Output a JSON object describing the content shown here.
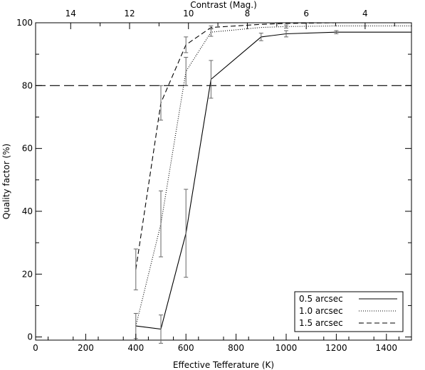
{
  "chart_data": {
    "type": "line",
    "title": "",
    "xlabel": "Effective Tefferature (K)",
    "ylabel": "Quality factor (%)",
    "top_axis_label": "Contrast (Mag.)",
    "xlim": [
      0,
      1500
    ],
    "ylim": [
      -1,
      100
    ],
    "x_ticks": [
      0,
      200,
      400,
      600,
      800,
      1000,
      1200,
      1400
    ],
    "y_ticks": [
      0,
      20,
      40,
      60,
      80,
      100
    ],
    "top_ticks": [
      {
        "label": "14",
        "x": 140
      },
      {
        "label": "12",
        "x": 375
      },
      {
        "label": "10",
        "x": 610
      },
      {
        "label": "8",
        "x": 845
      },
      {
        "label": "6",
        "x": 1080
      },
      {
        "label": "4",
        "x": 1315
      }
    ],
    "reference_line": {
      "y": 80,
      "style": "long-dash"
    },
    "grid": false,
    "legend_position": "bottom-right",
    "series": [
      {
        "name": "0.5 arcsec",
        "style": "solid",
        "points": [
          {
            "x": 400,
            "y": 3.5,
            "err": null
          },
          {
            "x": 500,
            "y": 2.5,
            "err": 4.5
          },
          {
            "x": 600,
            "y": 33,
            "err": 14
          },
          {
            "x": 700,
            "y": 82,
            "err": 6
          },
          {
            "x": 900,
            "y": 95.5,
            "err": 1.2
          },
          {
            "x": 1000,
            "y": 96.5,
            "err": 1
          },
          {
            "x": 1200,
            "y": 97,
            "err": 0.5
          },
          {
            "x": 1500,
            "y": 97,
            "err": null
          }
        ]
      },
      {
        "name": "1.0 arcsec",
        "style": "dotted",
        "points": [
          {
            "x": 400,
            "y": 3.5,
            "err": 4
          },
          {
            "x": 500,
            "y": 36,
            "err": 10.5
          },
          {
            "x": 600,
            "y": 84.5,
            "err": 4.5
          },
          {
            "x": 700,
            "y": 97,
            "err": 1.3
          },
          {
            "x": 900,
            "y": 98.5,
            "err": null
          },
          {
            "x": 1000,
            "y": 98.8,
            "err": 0.5
          },
          {
            "x": 1200,
            "y": 99,
            "err": null
          },
          {
            "x": 1500,
            "y": 99,
            "err": null
          }
        ]
      },
      {
        "name": "1.5 arcsec",
        "style": "dashed",
        "points": [
          {
            "x": 400,
            "y": 21.5,
            "err": 6.5
          },
          {
            "x": 500,
            "y": 74.5,
            "err": 5.5
          },
          {
            "x": 600,
            "y": 93,
            "err": 2.5
          },
          {
            "x": 700,
            "y": 98.5,
            "err": 0.5
          },
          {
            "x": 900,
            "y": 99.5,
            "err": null
          },
          {
            "x": 1000,
            "y": 99.8,
            "err": null
          },
          {
            "x": 1200,
            "y": 100,
            "err": null
          },
          {
            "x": 1500,
            "y": 100,
            "err": null
          }
        ]
      }
    ]
  }
}
